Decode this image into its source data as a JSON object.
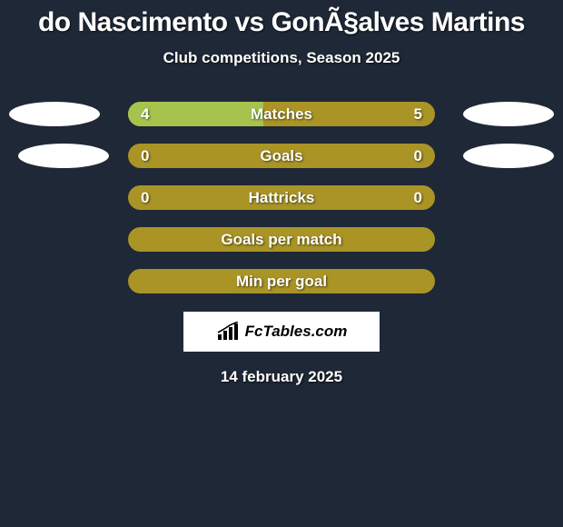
{
  "title": "do Nascimento vs GonÃ§alves Martins",
  "subtitle": "Club competitions, Season 2025",
  "date": "14 february 2025",
  "logo_text": "FcTables.com",
  "colors": {
    "background": "#1f2836",
    "bar_base": "#a99425",
    "bar_fill_left": "#a6c34d",
    "oval": "#ffffff",
    "text": "#ffffff"
  },
  "rows": [
    {
      "label": "Matches",
      "left_value": "4",
      "right_value": "5",
      "left_fill_pct": 44,
      "right_fill_pct": 0,
      "show_left_oval": true,
      "show_right_oval": true,
      "left_oval_nudge": false
    },
    {
      "label": "Goals",
      "left_value": "0",
      "right_value": "0",
      "left_fill_pct": 0,
      "right_fill_pct": 0,
      "show_left_oval": true,
      "show_right_oval": true,
      "left_oval_nudge": true
    },
    {
      "label": "Hattricks",
      "left_value": "0",
      "right_value": "0",
      "left_fill_pct": 0,
      "right_fill_pct": 0,
      "show_left_oval": false,
      "show_right_oval": false,
      "left_oval_nudge": false
    },
    {
      "label": "Goals per match",
      "left_value": "",
      "right_value": "",
      "left_fill_pct": 0,
      "right_fill_pct": 0,
      "show_left_oval": false,
      "show_right_oval": false,
      "left_oval_nudge": false
    },
    {
      "label": "Min per goal",
      "left_value": "",
      "right_value": "",
      "left_fill_pct": 0,
      "right_fill_pct": 0,
      "show_left_oval": false,
      "show_right_oval": false,
      "left_oval_nudge": false
    }
  ]
}
